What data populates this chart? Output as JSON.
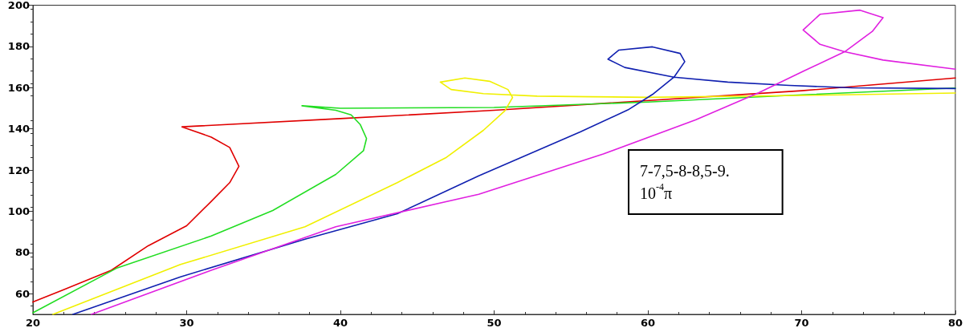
{
  "chart_data": {
    "type": "line",
    "xlim": [
      20,
      80
    ],
    "ylim": [
      50,
      200
    ],
    "xticks": [
      20,
      30,
      40,
      50,
      60,
      70,
      80
    ],
    "yticks": [
      60,
      80,
      100,
      120,
      140,
      160,
      180,
      200
    ],
    "grid": false,
    "marker": "none",
    "line_style": "solid",
    "annotations": [
      "7-7,5-8-8,5-9.\n10$^{-4}$π"
    ],
    "series": [
      {
        "color": "#e00000",
        "x": [
          20,
          22,
          25.1,
          27.5,
          30,
          31.6,
          32.8,
          33.4,
          32.8,
          31.6,
          29.7,
          40,
          50,
          70,
          80
        ],
        "values": [
          56,
          62,
          71.4,
          83.3,
          93,
          104.8,
          113.9,
          121.8,
          131,
          136,
          141,
          145,
          149,
          158.5,
          164.7
        ]
      },
      {
        "color": "#22dd22",
        "x": [
          20,
          25.5,
          31.6,
          35.6,
          39.7,
          41.5,
          41.7,
          41.3,
          40.7,
          39.7,
          37.5,
          40,
          50,
          60,
          70,
          80
        ],
        "values": [
          50.8,
          72.6,
          88,
          100.4,
          117.9,
          129.4,
          135.3,
          142,
          146.8,
          149,
          151.2,
          150,
          150.4,
          153,
          156.5,
          159.8
        ]
      },
      {
        "color": "#f0f000",
        "x": [
          21.3,
          29.6,
          37.7,
          43.7,
          46.9,
          49.3,
          50.7,
          51.2,
          50.9,
          49.7,
          48.1,
          46.5,
          47.2,
          49.3,
          52.8,
          56.3,
          60,
          70,
          80
        ],
        "values": [
          50,
          74.2,
          92.5,
          113.9,
          126.2,
          139.3,
          148.8,
          155.2,
          159.1,
          163.1,
          164.7,
          162.7,
          159.1,
          157.1,
          155.9,
          155.6,
          155.3,
          156.2,
          157.4
        ]
      },
      {
        "color": "#1020b0",
        "x": [
          22.6,
          29.6,
          37.7,
          43.7,
          49,
          55.6,
          58.7,
          60.3,
          61.7,
          62.4,
          62.1,
          60.3,
          58.1,
          57.4,
          58.5,
          61.7,
          65.2,
          69.2,
          73.3,
          80
        ],
        "values": [
          50,
          68.2,
          86.5,
          98.8,
          117.2,
          138.5,
          149.2,
          156.7,
          165.1,
          172.6,
          176.6,
          179.8,
          178.2,
          173.8,
          169.8,
          165.1,
          162.7,
          161.1,
          159.9,
          159.6
        ]
      },
      {
        "color": "#e020e0",
        "x": [
          23.8,
          31.6,
          39.7,
          49,
          57.1,
          63.1,
          67.2,
          70.2,
          72.8,
          74.6,
          75.3,
          73.8,
          71.2,
          70.1,
          71.2,
          72.8,
          75.3,
          80
        ],
        "values": [
          50,
          71.4,
          92.5,
          108.3,
          127.8,
          144.4,
          157.5,
          168.3,
          177.4,
          187.3,
          194,
          197.6,
          195.6,
          188,
          181,
          177.4,
          173.4,
          169
        ]
      }
    ]
  }
}
